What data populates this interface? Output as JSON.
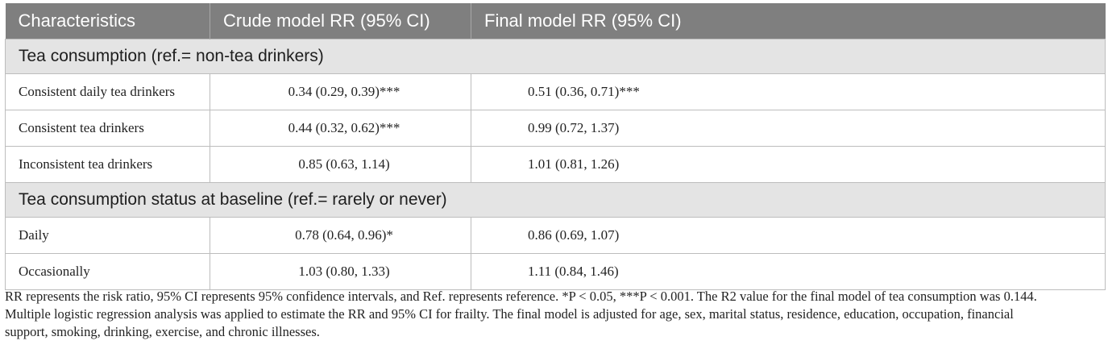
{
  "table": {
    "headers": [
      "Characteristics",
      "Crude model RR (95% CI)",
      "Final model RR (95% CI)"
    ],
    "sections": [
      {
        "title": "Tea consumption (ref.= non-tea drinkers)",
        "rows": [
          {
            "label": "Consistent daily tea drinkers",
            "crude": "0.34 (0.29, 0.39)***",
            "final": "0.51 (0.36, 0.71)***"
          },
          {
            "label": "Consistent tea drinkers",
            "crude": "0.44 (0.32, 0.62)***",
            "final": "0.99 (0.72, 1.37)"
          },
          {
            "label": "Inconsistent tea drinkers",
            "crude": "0.85 (0.63, 1.14)",
            "final": "1.01 (0.81, 1.26)"
          }
        ]
      },
      {
        "title": "Tea consumption status at baseline (ref.= rarely or never)",
        "rows": [
          {
            "label": "Daily",
            "crude": "0.78 (0.64, 0.96)*",
            "final": "0.86 (0.69, 1.07)"
          },
          {
            "label": "Occasionally",
            "crude": "1.03 (0.80, 1.33)",
            "final": "1.11 (0.84, 1.46)"
          }
        ]
      }
    ]
  },
  "footnote": {
    "lines": [
      "RR represents the risk ratio, 95% CI represents 95% confidence intervals, and Ref. represents reference. *P < 0.05, ***P < 0.001. The R2 value for the final model of tea consumption was 0.144.",
      "Multiple logistic regression analysis was applied to estimate the RR and 95% CI for frailty. The final model is adjusted for age, sex, marital status, residence, education, occupation, financial",
      "support, smoking, drinking, exercise, and chronic illnesses."
    ]
  }
}
